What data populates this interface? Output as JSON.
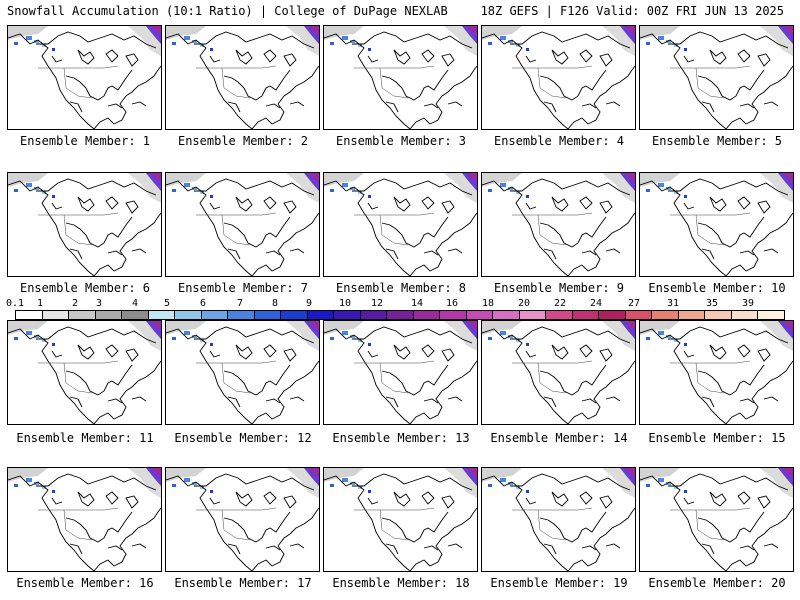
{
  "header": {
    "title": "Snowfall Accumulation (10:1 Ratio) | College of DuPage NEXLAB",
    "run_info": "18Z GEFS | F126 Valid: 00Z FRI JUN 13 2025"
  },
  "panels": [
    {
      "label": "Ensemble Member: 1"
    },
    {
      "label": "Ensemble Member: 2"
    },
    {
      "label": "Ensemble Member: 3"
    },
    {
      "label": "Ensemble Member: 4"
    },
    {
      "label": "Ensemble Member: 5"
    },
    {
      "label": "Ensemble Member: 6"
    },
    {
      "label": "Ensemble Member: 7"
    },
    {
      "label": "Ensemble Member: 8"
    },
    {
      "label": "Ensemble Member: 9"
    },
    {
      "label": "Ensemble Member: 10"
    },
    {
      "label": "Ensemble Member: 11"
    },
    {
      "label": "Ensemble Member: 12"
    },
    {
      "label": "Ensemble Member: 13"
    },
    {
      "label": "Ensemble Member: 14"
    },
    {
      "label": "Ensemble Member: 15"
    },
    {
      "label": "Ensemble Member: 16"
    },
    {
      "label": "Ensemble Member: 17"
    },
    {
      "label": "Ensemble Member: 18"
    },
    {
      "label": "Ensemble Member: 19"
    },
    {
      "label": "Ensemble Member: 20"
    }
  ],
  "legend": {
    "tick_labels": [
      "0.1",
      "1",
      "2",
      "3",
      "4",
      "5",
      "6",
      "7",
      "8",
      "9",
      "10",
      "12",
      "14",
      "16",
      "18",
      "20",
      "22",
      "24",
      "27",
      "31",
      "35",
      "39"
    ],
    "colors": [
      "#ffffff",
      "#e6e6e6",
      "#c8c8c8",
      "#aaaaaa",
      "#8c8c8c",
      "#bfe8f5",
      "#8ec8ea",
      "#6aa6e6",
      "#4a84e2",
      "#2d62dc",
      "#1a3ed4",
      "#1a18c8",
      "#3a16b4",
      "#5a1aa6",
      "#7a1e9c",
      "#9a2a9e",
      "#b436a8",
      "#c84ab6",
      "#d86ec4",
      "#e890c8",
      "#d24a8c",
      "#c23074",
      "#b0205e",
      "#d8506a",
      "#e88070",
      "#f0a890",
      "#f6c8b0",
      "#fae0cc",
      "#fff0e2"
    ]
  }
}
